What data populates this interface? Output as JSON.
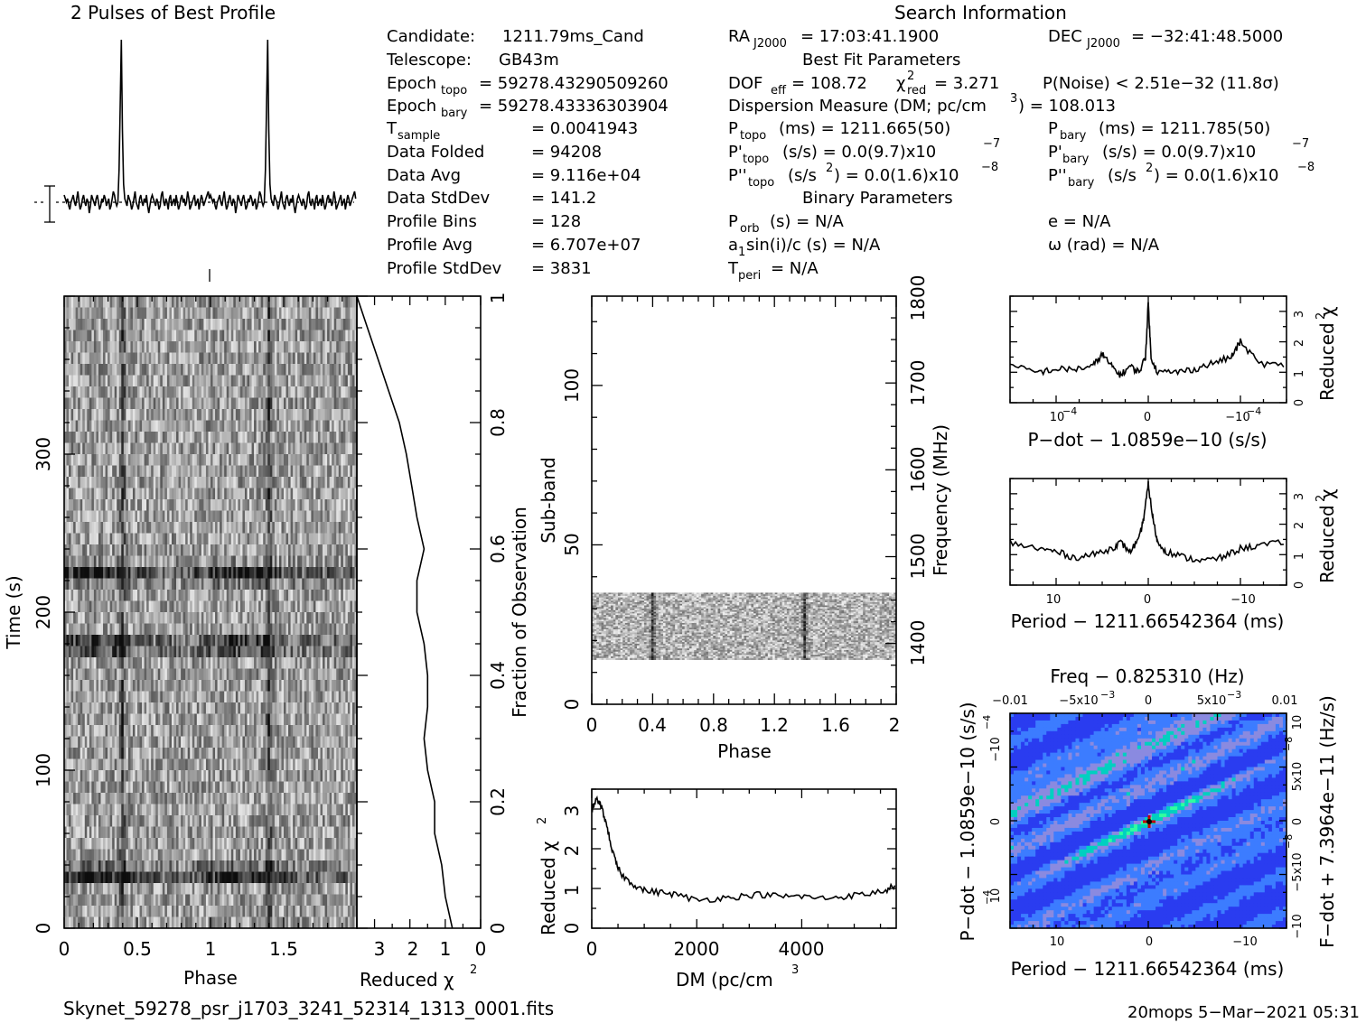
{
  "header": {
    "profile_title": "2 Pulses of Best Profile",
    "search_title": "Search Information",
    "best_fit_title": "Best Fit Parameters",
    "binary_title": "Binary Parameters"
  },
  "info_left": [
    {
      "label": "Candidate:",
      "value": "1211.79ms_Cand"
    },
    {
      "label": "Telescope:",
      "value": "GB43m"
    },
    {
      "label": "Epoch",
      "sub": "topo",
      "value": "= 59278.43290509260"
    },
    {
      "label": "Epoch",
      "sub": "bary",
      "value": "= 59278.43336303904"
    },
    {
      "label": "T",
      "sub": "sample",
      "value": "=   0.0041943"
    },
    {
      "label": "Data Folded",
      "value": "=   94208"
    },
    {
      "label": "Data Avg",
      "value": "=   9.116e+04"
    },
    {
      "label": "Data StdDev",
      "value": "=   141.2"
    },
    {
      "label": "Profile Bins",
      "value": "=   128"
    },
    {
      "label": "Profile Avg",
      "value": "=   6.707e+07"
    },
    {
      "label": "Profile StdDev",
      "value": "=   3831"
    }
  ],
  "search_info": {
    "ra_label": "RA",
    "ra_sub": "J2000",
    "ra_value": "= 17:03:41.1900",
    "dec_label": "DEC",
    "dec_sub": "J2000",
    "dec_value": "= −32:41:48.5000",
    "dof": "DOF",
    "dof_sub": "eff",
    "dof_value": "= 108.72",
    "chi2_label": "χ",
    "chi2_sub": "red",
    "chi2_value": "= 3.271",
    "pnoise": "P(Noise) < 2.51e−32   (11.8σ)",
    "dm_line": "Dispersion Measure (DM; pc/cm",
    "dm_value": ") = 108.013",
    "ptopo_label": "P",
    "ptopo_sub": "topo",
    "ptopo_value": "(ms)  =   1211.665(50)",
    "pbary_label": "P",
    "pbary_sub": "bary",
    "pbary_value": "(ms)  =   1211.785(50)",
    "pdtopo_label": "P'",
    "pdtopo_sub": "topo",
    "pdtopo_value": "(s/s) = 0.0(9.7)x10",
    "pdtopo_exp": "−7",
    "pdbary_label": "P'",
    "pdbary_sub": "bary",
    "pdbary_value": "(s/s) = 0.0(9.7)x10",
    "pdbary_exp": "−7",
    "pddtopo_label": "P''",
    "pddtopo_sub": "topo",
    "pddtopo_value": "(s/s",
    "pddtopo_value2": ") = 0.0(1.6)x10",
    "pddtopo_exp": "−8",
    "pddbary_label": "P''",
    "pddbary_sub": "bary",
    "pddbary_value": "(s/s",
    "pddbary_value2": ") = 0.0(1.6)x10",
    "pddbary_exp": "−8",
    "porb": "P",
    "porb_sub": "orb",
    "porb_value": "(s) = N/A",
    "ecc": "e = N/A",
    "a1": "a",
    "a1_sub": "1",
    "a1_value": "sin(i)/c (s) = N/A",
    "omega": "ω (rad) = N/A",
    "tperi": "T",
    "tperi_sub": "peri",
    "tperi_value": "= N/A"
  },
  "footer": {
    "filename": "Skynet_59278_psr_j1703_3241_52314_1313_0001.fits",
    "stamp": "20mops   5−Mar−2021 05:31"
  },
  "chart_data": [
    {
      "id": "best-profile",
      "type": "line",
      "title": "2 Pulses of Best Profile",
      "xlim": [
        0,
        2
      ],
      "n_bins": 128,
      "pulse_phase": [
        0.4,
        1.4
      ],
      "values": [
        2,
        1,
        0,
        1,
        -1,
        -2,
        0,
        1,
        2,
        0,
        -1,
        1,
        3,
        0,
        -2,
        -1,
        1,
        2,
        0,
        -1,
        1,
        0,
        -3,
        -1,
        2,
        1,
        0,
        -1,
        1,
        2,
        0,
        -2,
        -1,
        1,
        0,
        2,
        1,
        -1,
        0,
        1,
        -2,
        -1,
        1,
        3,
        2,
        0,
        -1,
        0,
        9,
        26,
        45,
        20,
        5,
        1,
        0,
        -1,
        2,
        1,
        0,
        -2,
        -1,
        1,
        3,
        0,
        -1,
        -2,
        1,
        2,
        0,
        -1,
        1,
        0,
        2,
        -1,
        -3,
        -1,
        1,
        2,
        1,
        0,
        -1,
        1,
        0,
        -2,
        -1,
        2,
        3,
        0,
        -1,
        1,
        0,
        -2,
        1,
        2,
        -1,
        0,
        1,
        -1,
        2,
        0,
        -2,
        -1,
        1,
        2,
        0,
        1,
        -1,
        0,
        3,
        1,
        -2,
        -1,
        0,
        1,
        2,
        -1,
        0,
        1,
        -2,
        0,
        2,
        1,
        -1,
        0,
        1,
        2,
        3,
        1
      ]
    },
    {
      "id": "time-phase",
      "type": "heatmap",
      "xlabel": "Phase",
      "ylabel": "Time (s)",
      "xlim": [
        0,
        2
      ],
      "ylim": [
        0,
        400
      ],
      "xticks": [
        "0",
        "0.5",
        "1",
        "1.5"
      ],
      "yticks": [
        "0",
        "100",
        "200",
        "300"
      ],
      "y2label": "Fraction of Observation",
      "y2ticks": [
        "0",
        "0.2",
        "0.4",
        "0.6",
        "0.8",
        "1"
      ],
      "dark_rows_seconds": [
        34,
        179,
        224
      ]
    },
    {
      "id": "reduced-chi2-time",
      "type": "line",
      "xlabel": "Reduced χ",
      "xlabel_exp": "2",
      "xticks": [
        "3",
        "2",
        "1",
        "0"
      ],
      "xlim": [
        3.5,
        0
      ],
      "fraction": [
        0,
        0.05,
        0.1,
        0.15,
        0.2,
        0.25,
        0.3,
        0.35,
        0.4,
        0.45,
        0.5,
        0.55,
        0.6,
        0.65,
        0.7,
        0.75,
        0.8,
        0.85,
        0.9,
        0.95,
        1.0
      ],
      "values": [
        0.8,
        1.0,
        1.1,
        1.3,
        1.3,
        1.5,
        1.6,
        1.5,
        1.5,
        1.6,
        1.8,
        1.8,
        1.6,
        1.8,
        1.95,
        2.1,
        2.3,
        2.6,
        2.9,
        3.2,
        3.5
      ]
    },
    {
      "id": "subband-phase",
      "type": "heatmap",
      "xlabel": "Phase",
      "ylabel": "Sub-band",
      "xlim": [
        0,
        2
      ],
      "ylim": [
        0,
        128
      ],
      "xticks": [
        "0",
        "0.4",
        "0.8",
        "1.2",
        "1.6",
        "2"
      ],
      "yticks": [
        "0",
        "50",
        "100"
      ],
      "y2label": "Frequency (MHz)",
      "y2ticks": [
        "1400",
        "1500",
        "1600",
        "1700",
        "1800"
      ],
      "y2lim": [
        1330,
        1800
      ],
      "filled_subbands": [
        14,
        35
      ]
    },
    {
      "id": "dm-chi2",
      "type": "line",
      "xlabel": "DM (pc/cm",
      "xlabel_exp": "3",
      "ylabel": "Reduced χ",
      "ylabel_exp": "2",
      "xlim": [
        0,
        5800
      ],
      "ylim": [
        0,
        3.5
      ],
      "xticks": [
        "0",
        "2000",
        "4000"
      ],
      "yticks": [
        "0",
        "1",
        "2",
        "3"
      ],
      "x": [
        0,
        100,
        200,
        300,
        400,
        500,
        600,
        800,
        1000,
        1300,
        1600,
        2000,
        2400,
        2800,
        3200,
        3600,
        4000,
        4400,
        4800,
        5200,
        5600,
        5800
      ],
      "y": [
        3.0,
        3.25,
        3.0,
        2.5,
        1.9,
        1.5,
        1.3,
        1.1,
        0.95,
        0.9,
        0.85,
        0.7,
        0.75,
        0.8,
        0.85,
        0.8,
        0.8,
        0.75,
        0.8,
        0.85,
        0.95,
        1.1
      ]
    },
    {
      "id": "pdot-chi2",
      "type": "line",
      "xlabel": "P−dot − 1.0859e−10 (s/s)",
      "ylabel": "Reduced χ",
      "ylabel_exp": "2",
      "xlim": [
        0.00015,
        -0.00015
      ],
      "ylim": [
        0,
        3.5
      ],
      "xticks": [
        "10",
        "0",
        "−10"
      ],
      "xtick_exp": "−4",
      "yticks": [
        "0",
        "1",
        "2",
        "3"
      ],
      "x": [
        0.00015,
        0.00012,
        0.0001,
        8e-05,
        6e-05,
        5e-05,
        4e-05,
        3e-05,
        2e-05,
        1e-05,
        3e-06,
        0,
        -3e-06,
        -1e-05,
        -3e-05,
        -5e-05,
        -7e-05,
        -9e-05,
        -0.0001,
        -0.00012,
        -0.00015
      ],
      "y": [
        1.2,
        1.0,
        1.1,
        1.1,
        1.2,
        1.6,
        1.2,
        0.9,
        1.2,
        1.0,
        1.5,
        3.3,
        1.5,
        1.0,
        1.0,
        1.1,
        1.3,
        1.5,
        2.0,
        1.3,
        1.2
      ]
    },
    {
      "id": "period-chi2",
      "type": "line",
      "xlabel": "Period − 1211.66542364 (ms)",
      "ylabel": "Reduced χ",
      "ylabel_exp": "2",
      "xlim": [
        15,
        -15
      ],
      "ylim": [
        0,
        3.5
      ],
      "xticks": [
        "10",
        "0",
        "−10"
      ],
      "yticks": [
        "0",
        "1",
        "2",
        "3"
      ],
      "x": [
        15,
        12,
        10,
        8,
        6,
        4,
        3,
        2,
        1,
        0.5,
        0,
        -0.5,
        -1,
        -2,
        -4,
        -6,
        -8,
        -10,
        -12,
        -15
      ],
      "y": [
        1.4,
        1.2,
        1.1,
        0.9,
        1.0,
        1.2,
        1.4,
        1.1,
        1.5,
        2.2,
        3.3,
        2.2,
        1.4,
        1.1,
        0.9,
        0.8,
        0.9,
        1.2,
        1.3,
        1.4
      ]
    },
    {
      "id": "pp-dot",
      "type": "heatmap",
      "xlabel": "Period − 1211.66542364 (ms)",
      "ylabel": "P−dot − 1.0859e−10 (s/s)",
      "top_label": "Freq − 0.825310 (Hz)",
      "right_label": "F−dot + 7.3964e−11 (Hz/s)",
      "xticks": [
        "10",
        "0",
        "−10"
      ],
      "top_ticks": [
        "−0.01",
        "−5x10",
        "0",
        "5x10",
        "0.01"
      ],
      "top_tick_exp": "−3",
      "left_ticks": [
        "−10",
        "0",
        "10"
      ],
      "left_tick_exp": "−4",
      "right_ticks": [
        "10",
        "5x10",
        "0",
        "−5x10",
        "−10"
      ],
      "right_tick_exp": "−8",
      "colors": [
        "#2a3cf0",
        "#3c7cff",
        "#8a8ae0",
        "#00d0c0",
        "#30ffa0"
      ]
    }
  ]
}
